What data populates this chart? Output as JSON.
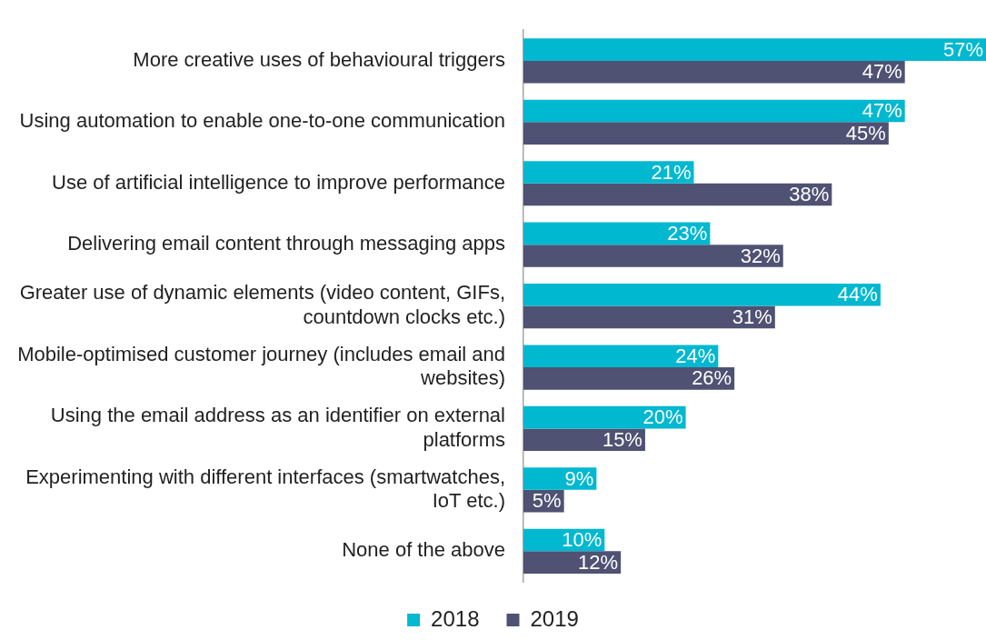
{
  "chart_data": {
    "type": "bar",
    "orientation": "horizontal",
    "categories": [
      "More creative uses of behavioural triggers",
      "Using automation to enable one-to-one communication",
      "Use of artificial intelligence to improve performance",
      "Delivering email content through messaging apps",
      "Greater use of dynamic elements (video content, GIFs, countdown clocks etc.)",
      "Mobile-optimised customer journey (includes email and websites)",
      "Using the email address as an identifier on external platforms",
      "Experimenting with different interfaces (smartwatches, IoT etc.)",
      "None of the above"
    ],
    "series": [
      {
        "name": "2018",
        "color": "#00b8d0",
        "values": [
          57,
          47,
          21,
          23,
          44,
          24,
          20,
          9,
          10
        ],
        "value_labels": [
          "57%",
          "47%",
          "21%",
          "23%",
          "44%",
          "24%",
          "20%",
          "9%",
          "10%"
        ]
      },
      {
        "name": "2019",
        "color": "#4f5272",
        "values": [
          47,
          45,
          38,
          32,
          31,
          26,
          15,
          5,
          12
        ],
        "value_labels": [
          "47%",
          "45%",
          "38%",
          "32%",
          "31%",
          "26%",
          "15%",
          "5%",
          "12%"
        ]
      }
    ],
    "grid": false,
    "legend": "bottom",
    "tick_labels": "y"
  }
}
